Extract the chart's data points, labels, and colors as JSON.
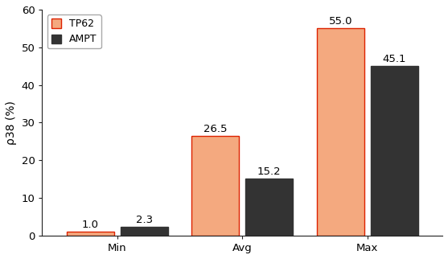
{
  "categories": [
    "Min",
    "Avg",
    "Max"
  ],
  "tp62_values": [
    1.0,
    26.5,
    55.0
  ],
  "ampt_values": [
    2.3,
    15.2,
    45.1
  ],
  "tp62_color": "#F4A97F",
  "ampt_color": "#333333",
  "tp62_label": "TP62",
  "ampt_label": "AMPT",
  "ylabel": "ρ38 (%)",
  "ylim": [
    0,
    60
  ],
  "yticks": [
    0,
    10,
    20,
    30,
    40,
    50,
    60
  ],
  "bar_width": 0.38,
  "bar_gap": 0.05,
  "legend_edgecolor_tp62": "#dd2200",
  "spine_color": "#888888",
  "background_color": "#ffffff",
  "label_fontsize": 9.5,
  "tick_fontsize": 9.5,
  "ylabel_fontsize": 10
}
